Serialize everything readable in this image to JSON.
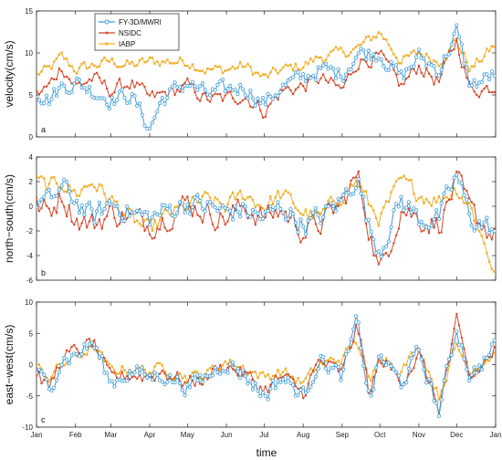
{
  "colors": {
    "fy3d": "#3b9ad9",
    "nsidc": "#d6482a",
    "iabp": "#f0b02a",
    "axis": "#222222"
  },
  "legend": {
    "entries": [
      "FY-3D/MWRI",
      "NSIDC",
      "IABP"
    ],
    "placement": "top-left"
  },
  "x_axis": {
    "label": "time",
    "ticks": [
      "Jan",
      "Feb",
      "Mar",
      "Apr",
      "May",
      "Jun",
      "Jul",
      "Aug",
      "Sep",
      "Oct",
      "Nov",
      "Dec",
      "Jan"
    ]
  },
  "chart_data": [
    {
      "type": "line",
      "panel": "a",
      "ylabel": "velocity(cm/s)",
      "ylim": [
        0,
        15
      ],
      "yticks": [
        "0",
        "5",
        "10",
        "15"
      ],
      "x_unit": "days since Jan 1",
      "anchors": {
        "fy3d": [
          [
            0,
            5.5
          ],
          [
            10,
            4.5
          ],
          [
            20,
            6
          ],
          [
            31,
            6.5
          ],
          [
            45,
            5.5
          ],
          [
            59,
            4.5
          ],
          [
            75,
            5
          ],
          [
            90,
            1
          ],
          [
            100,
            4.5
          ],
          [
            120,
            6.5
          ],
          [
            135,
            5
          ],
          [
            150,
            5.5
          ],
          [
            165,
            6
          ],
          [
            181,
            4
          ],
          [
            195,
            6
          ],
          [
            212,
            7
          ],
          [
            225,
            8
          ],
          [
            243,
            7.5
          ],
          [
            255,
            10
          ],
          [
            273,
            10
          ],
          [
            290,
            7
          ],
          [
            304,
            9.5
          ],
          [
            320,
            8
          ],
          [
            334,
            12.5
          ],
          [
            345,
            6
          ],
          [
            365,
            7.5
          ]
        ],
        "nsidc": [
          [
            0,
            5
          ],
          [
            10,
            6
          ],
          [
            20,
            8.5
          ],
          [
            31,
            6
          ],
          [
            45,
            7
          ],
          [
            59,
            5.5
          ],
          [
            75,
            6.5
          ],
          [
            90,
            4.5
          ],
          [
            100,
            5
          ],
          [
            120,
            6
          ],
          [
            135,
            4.5
          ],
          [
            150,
            4.5
          ],
          [
            165,
            5
          ],
          [
            181,
            3
          ],
          [
            195,
            5.5
          ],
          [
            212,
            6
          ],
          [
            225,
            7
          ],
          [
            243,
            5.5
          ],
          [
            255,
            9
          ],
          [
            273,
            9.5
          ],
          [
            290,
            6
          ],
          [
            304,
            8.5
          ],
          [
            320,
            6.5
          ],
          [
            334,
            11.5
          ],
          [
            345,
            5.5
          ],
          [
            365,
            6
          ]
        ],
        "iabp": [
          [
            0,
            7.5
          ],
          [
            10,
            8
          ],
          [
            20,
            9.5
          ],
          [
            31,
            8
          ],
          [
            45,
            8.5
          ],
          [
            59,
            9
          ],
          [
            75,
            8.5
          ],
          [
            90,
            9
          ],
          [
            100,
            9
          ],
          [
            120,
            9
          ],
          [
            135,
            8
          ],
          [
            150,
            8
          ],
          [
            165,
            8.5
          ],
          [
            181,
            7
          ],
          [
            195,
            8
          ],
          [
            212,
            8.5
          ],
          [
            225,
            9.5
          ],
          [
            243,
            10
          ],
          [
            255,
            10.5
          ],
          [
            273,
            12.5
          ],
          [
            290,
            9
          ],
          [
            304,
            10
          ],
          [
            320,
            9
          ],
          [
            334,
            11.5
          ],
          [
            345,
            8
          ],
          [
            365,
            11
          ]
        ]
      },
      "amplitudes": {
        "fy3d": 0.9,
        "nsidc": 0.8,
        "iabp": 0.6
      }
    },
    {
      "type": "line",
      "panel": "b",
      "ylabel": "north−south(cm/s)",
      "ylim": [
        -6,
        4
      ],
      "yticks": [
        "-6",
        "-4",
        "-2",
        "0",
        "2",
        "4"
      ],
      "x_unit": "days since Jan 1",
      "anchors": {
        "fy3d": [
          [
            0,
            0.5
          ],
          [
            10,
            0.3
          ],
          [
            20,
            1.5
          ],
          [
            31,
            0.5
          ],
          [
            45,
            -1
          ],
          [
            59,
            0.3
          ],
          [
            75,
            -0.5
          ],
          [
            90,
            -1
          ],
          [
            100,
            -0.5
          ],
          [
            120,
            0.3
          ],
          [
            135,
            0
          ],
          [
            150,
            -0.5
          ],
          [
            165,
            -0.3
          ],
          [
            181,
            -1
          ],
          [
            195,
            0
          ],
          [
            212,
            -1.5
          ],
          [
            225,
            -1
          ],
          [
            243,
            0.5
          ],
          [
            255,
            2.5
          ],
          [
            265,
            -2
          ],
          [
            273,
            -3.5
          ],
          [
            290,
            0.5
          ],
          [
            304,
            -1
          ],
          [
            320,
            -1
          ],
          [
            334,
            2.5
          ],
          [
            345,
            -1
          ],
          [
            365,
            -2
          ]
        ],
        "nsidc": [
          [
            0,
            0
          ],
          [
            10,
            -0.5
          ],
          [
            20,
            1
          ],
          [
            31,
            -1
          ],
          [
            45,
            -1.5
          ],
          [
            59,
            -0.5
          ],
          [
            75,
            -1
          ],
          [
            90,
            -1.5
          ],
          [
            100,
            -1
          ],
          [
            120,
            0.3
          ],
          [
            135,
            -0.5
          ],
          [
            150,
            -1
          ],
          [
            165,
            0
          ],
          [
            181,
            -1
          ],
          [
            195,
            -0.3
          ],
          [
            212,
            -2
          ],
          [
            225,
            -1.5
          ],
          [
            243,
            0.3
          ],
          [
            255,
            2.5
          ],
          [
            265,
            -2
          ],
          [
            273,
            -5.5
          ],
          [
            290,
            0
          ],
          [
            304,
            -1
          ],
          [
            320,
            -1.5
          ],
          [
            334,
            2
          ],
          [
            345,
            -0.5
          ],
          [
            365,
            -2.5
          ]
        ],
        "iabp": [
          [
            0,
            2
          ],
          [
            10,
            1.5
          ],
          [
            20,
            2
          ],
          [
            31,
            1
          ],
          [
            45,
            2
          ],
          [
            59,
            0.5
          ],
          [
            75,
            -1
          ],
          [
            90,
            -2
          ],
          [
            100,
            -1
          ],
          [
            120,
            0
          ],
          [
            135,
            0.5
          ],
          [
            150,
            0
          ],
          [
            165,
            1
          ],
          [
            181,
            0
          ],
          [
            195,
            1
          ],
          [
            212,
            -0.5
          ],
          [
            225,
            -1
          ],
          [
            243,
            1
          ],
          [
            255,
            2
          ],
          [
            265,
            0
          ],
          [
            273,
            -1
          ],
          [
            290,
            2
          ],
          [
            304,
            1
          ],
          [
            320,
            0.5
          ],
          [
            334,
            1.5
          ],
          [
            345,
            0
          ],
          [
            365,
            -5.5
          ]
        ]
      },
      "amplitudes": {
        "fy3d": 0.8,
        "nsidc": 0.9,
        "iabp": 0.6
      }
    },
    {
      "type": "line",
      "panel": "c",
      "ylabel": "east−west(cm/s)",
      "ylim": [
        -10,
        10
      ],
      "yticks": [
        "-10",
        "-5",
        "0",
        "5",
        "10"
      ],
      "x_unit": "days since Jan 1",
      "anchors": {
        "fy3d": [
          [
            0,
            -1
          ],
          [
            10,
            -4
          ],
          [
            20,
            1
          ],
          [
            31,
            1.5
          ],
          [
            45,
            3.5
          ],
          [
            59,
            -3
          ],
          [
            75,
            -1
          ],
          [
            90,
            -2
          ],
          [
            100,
            -1.5
          ],
          [
            120,
            -3.5
          ],
          [
            135,
            -2
          ],
          [
            150,
            0.5
          ],
          [
            165,
            -1.5
          ],
          [
            181,
            -5
          ],
          [
            195,
            -2
          ],
          [
            212,
            -5
          ],
          [
            225,
            1
          ],
          [
            243,
            -2
          ],
          [
            255,
            7
          ],
          [
            265,
            -6
          ],
          [
            273,
            1.5
          ],
          [
            290,
            -3
          ],
          [
            304,
            2
          ],
          [
            320,
            -7.5
          ],
          [
            334,
            6
          ],
          [
            345,
            -2
          ],
          [
            365,
            3
          ]
        ],
        "nsidc": [
          [
            0,
            -1
          ],
          [
            10,
            -4
          ],
          [
            20,
            1
          ],
          [
            31,
            2
          ],
          [
            45,
            3.5
          ],
          [
            59,
            -2.5
          ],
          [
            75,
            -1.5
          ],
          [
            90,
            -2
          ],
          [
            100,
            -1
          ],
          [
            120,
            -3
          ],
          [
            135,
            -2
          ],
          [
            150,
            0
          ],
          [
            165,
            -1.5
          ],
          [
            181,
            -4
          ],
          [
            195,
            -2
          ],
          [
            212,
            -4.5
          ],
          [
            225,
            0.5
          ],
          [
            243,
            -1.5
          ],
          [
            255,
            6.5
          ],
          [
            265,
            -5
          ],
          [
            273,
            1
          ],
          [
            290,
            -2.5
          ],
          [
            304,
            1.5
          ],
          [
            320,
            -7
          ],
          [
            334,
            6.5
          ],
          [
            345,
            -2.5
          ],
          [
            365,
            2.5
          ]
        ],
        "iabp": [
          [
            0,
            -0.5
          ],
          [
            10,
            -2
          ],
          [
            20,
            0
          ],
          [
            31,
            1
          ],
          [
            45,
            3
          ],
          [
            59,
            -1
          ],
          [
            75,
            -0.5
          ],
          [
            90,
            -1
          ],
          [
            100,
            -0.5
          ],
          [
            120,
            -2
          ],
          [
            135,
            -1.5
          ],
          [
            150,
            0.5
          ],
          [
            165,
            -0.5
          ],
          [
            181,
            -2
          ],
          [
            195,
            -1
          ],
          [
            212,
            -3
          ],
          [
            225,
            0
          ],
          [
            243,
            1
          ],
          [
            255,
            4
          ],
          [
            265,
            -3.5
          ],
          [
            273,
            2
          ],
          [
            290,
            -1
          ],
          [
            304,
            3
          ],
          [
            320,
            -5
          ],
          [
            334,
            3
          ],
          [
            345,
            -1
          ],
          [
            365,
            2
          ]
        ]
      },
      "amplitudes": {
        "fy3d": 1.2,
        "nsidc": 1.1,
        "iabp": 0.8
      }
    }
  ]
}
